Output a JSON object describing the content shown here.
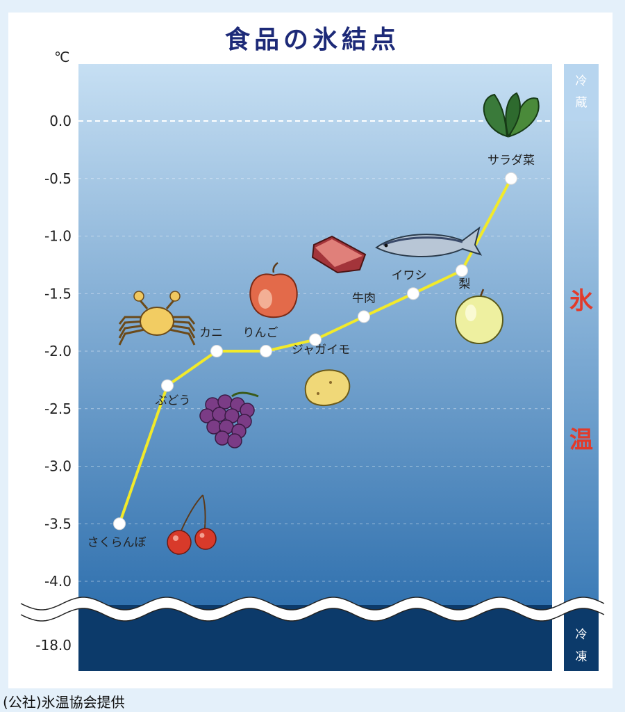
{
  "title": "食品の氷結点",
  "unit_label": "℃",
  "credit": "(公社)氷温協会提供",
  "zones": {
    "refrigeration": [
      "冷",
      "蔵"
    ],
    "hyoon": [
      "氷",
      "温"
    ],
    "freezing": [
      "冷",
      "凍"
    ]
  },
  "colors": {
    "line": "#f2ea2a",
    "title": "#1d2a78",
    "zone_text": "#e23a2a",
    "frozen_band": "#0c3a6a"
  },
  "chart_data": {
    "type": "line",
    "title": "食品の氷結点",
    "ylabel": "℃",
    "ylim": [
      -4.0,
      0.0
    ],
    "yticks": [
      "0.0",
      "-0.5",
      "-1.0",
      "-1.5",
      "-2.0",
      "-2.5",
      "-3.0",
      "-3.5",
      "-4.0",
      "-18.0"
    ],
    "axis_break": true,
    "grid": true,
    "series": [
      {
        "points": [
          {
            "label": "さくらんぼ",
            "value": -3.5,
            "icon": "cherry-icon"
          },
          {
            "label": "ぶどう",
            "value": -2.3,
            "icon": "grape-icon"
          },
          {
            "label": "カニ",
            "value": -2.0,
            "icon": "crab-icon"
          },
          {
            "label": "りんご",
            "value": -2.0,
            "icon": "apple-icon"
          },
          {
            "label": "ジャガイモ",
            "value": -1.9,
            "icon": "potato-icon"
          },
          {
            "label": "牛肉",
            "value": -1.7,
            "icon": "beef-icon"
          },
          {
            "label": "イワシ",
            "value": -1.5,
            "icon": "sardine-icon"
          },
          {
            "label": "梨",
            "value": -1.3,
            "icon": "pear-icon"
          },
          {
            "label": "サラダ菜",
            "value": -0.5,
            "icon": "lettuce-icon"
          }
        ]
      }
    ]
  }
}
